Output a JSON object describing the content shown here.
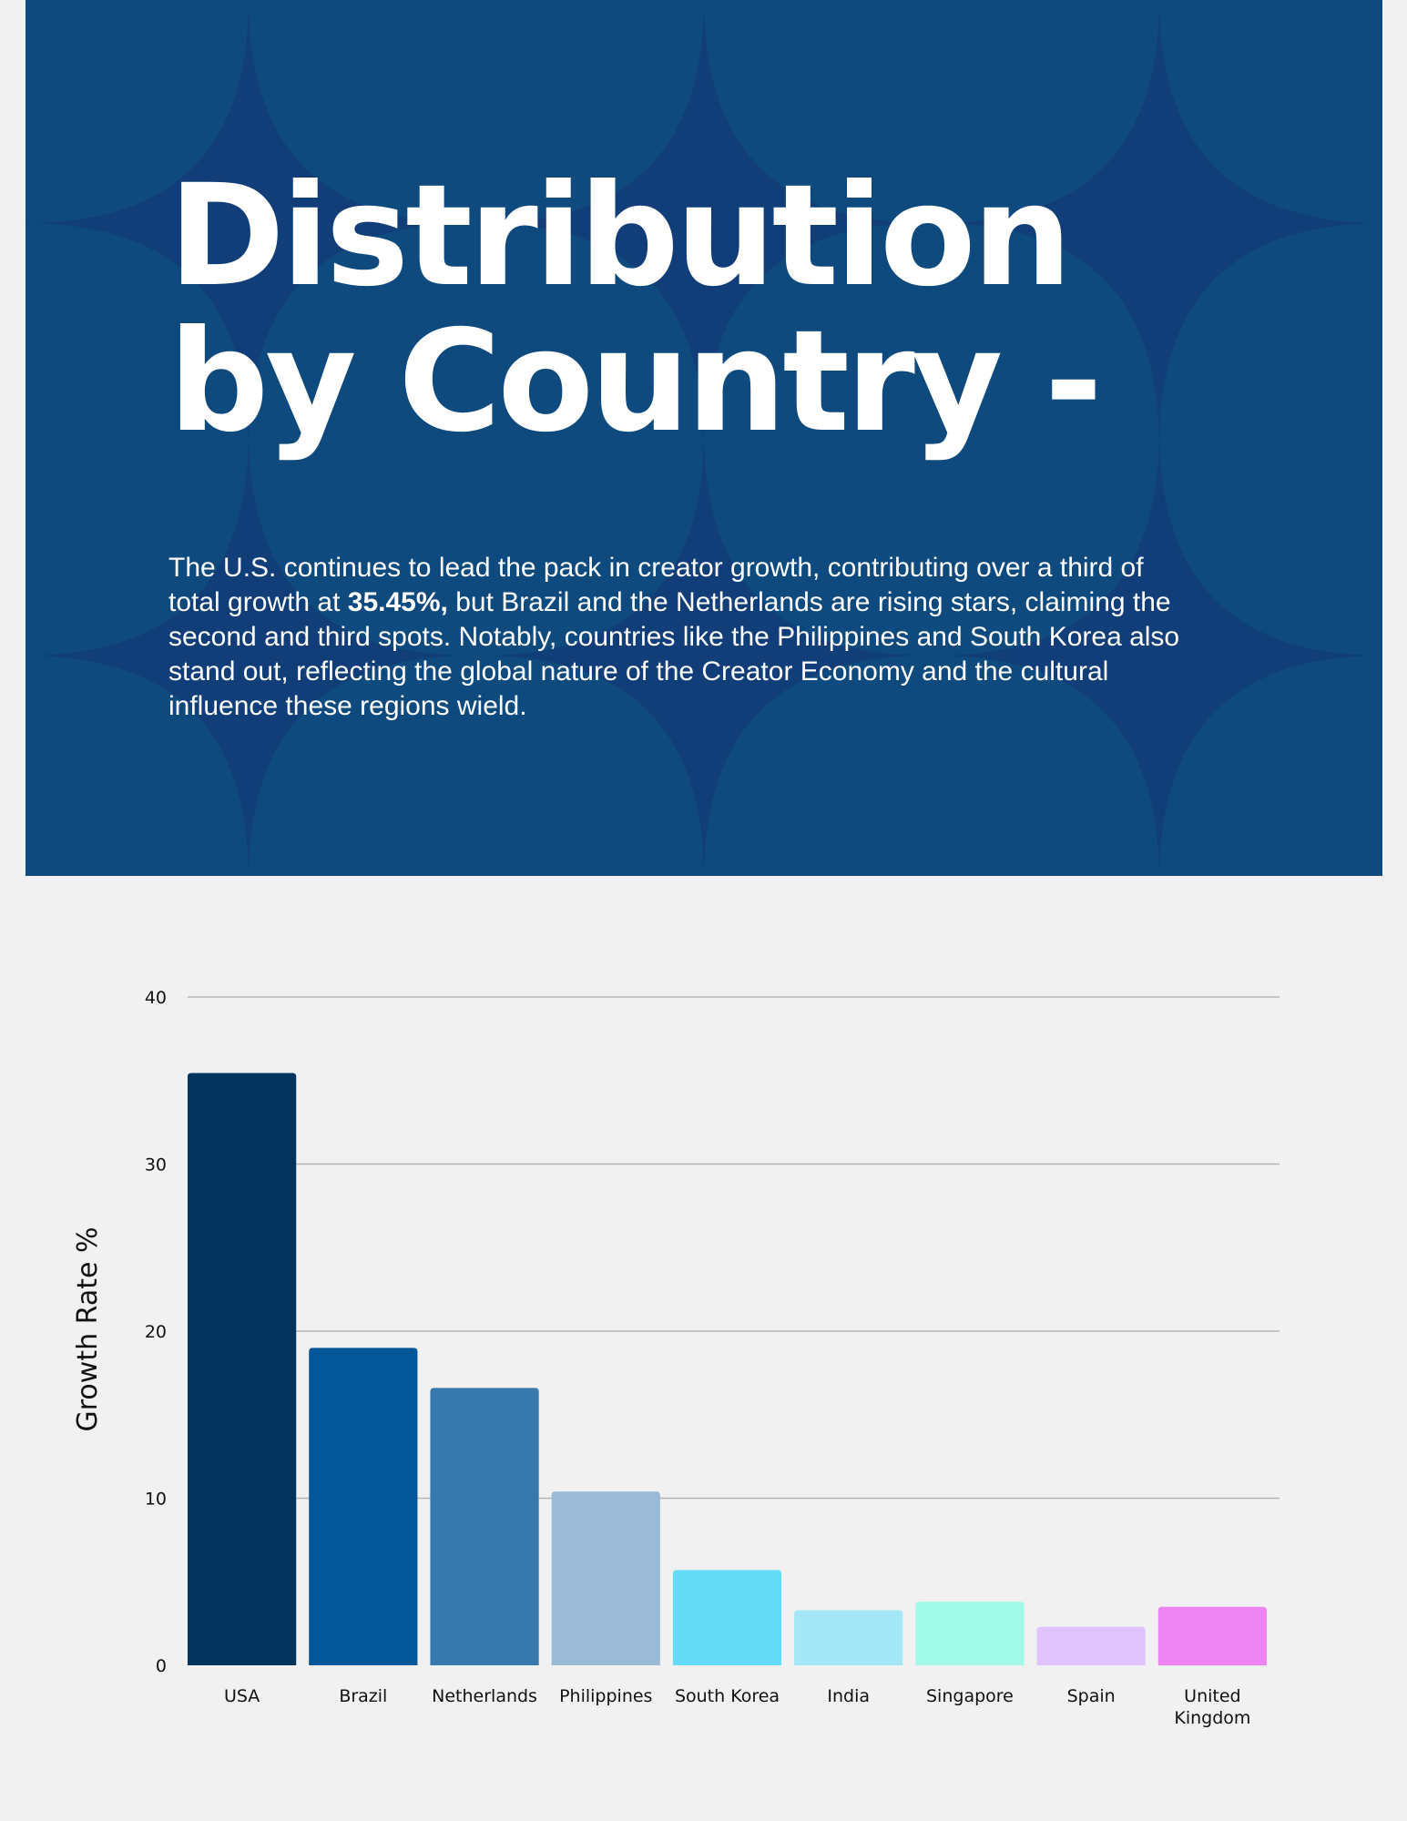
{
  "header": {
    "title_line1": "Distribution",
    "title_line2": "by Country -",
    "intro_before": "The U.S. continues to lead the pack in creator growth, contributing over a third of total growth at ",
    "intro_highlight": "35.45%,",
    "intro_after": " but Brazil and the Netherlands are rising stars, claiming the second and third spots. Notably, countries like the Philippines and South Korea also stand out, reflecting the global nature of the Creator Economy and the cultural influence these regions wield."
  },
  "colors": {
    "hero_background": "#0f4a7e",
    "hero_pattern": "#123c78",
    "page_background": "#f1f1f1"
  },
  "chart_data": {
    "type": "bar",
    "title": "",
    "xlabel": "",
    "ylabel": "Growth Rate %",
    "ylim": [
      0,
      40
    ],
    "yticks": [
      0,
      10,
      20,
      30,
      40
    ],
    "grid": true,
    "categories": [
      "USA",
      "Brazil",
      "Netherlands",
      "Philippines",
      "South Korea",
      "India",
      "Singapore",
      "Spain",
      "United Kingdom"
    ],
    "category_lines": [
      [
        "USA"
      ],
      [
        "Brazil"
      ],
      [
        "Netherlands"
      ],
      [
        "Philippines"
      ],
      [
        "South Korea"
      ],
      [
        "India"
      ],
      [
        "Singapore"
      ],
      [
        "Spain"
      ],
      [
        "United",
        "Kingdom"
      ]
    ],
    "values": [
      35.45,
      19,
      16.6,
      10.4,
      5.7,
      3.3,
      3.8,
      2.3,
      3.5
    ],
    "bar_colors": [
      "#02345d",
      "#035698",
      "#3778ad",
      "#9abad6",
      "#65dcf7",
      "#a4e8f8",
      "#a1fae7",
      "#dfc3fd",
      "#ee83f2"
    ]
  }
}
